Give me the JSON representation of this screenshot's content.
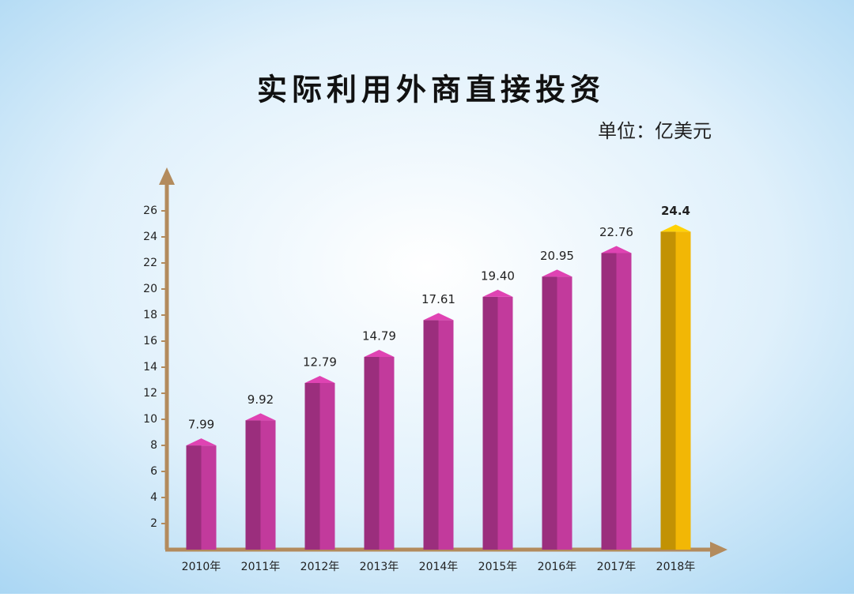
{
  "chart_data": {
    "type": "bar",
    "title": "实际利用外商直接投资",
    "subtitle": "单位：亿美元",
    "categories": [
      "2010年",
      "2011年",
      "2012年",
      "2013年",
      "2014年",
      "2015年",
      "2016年",
      "2017年",
      "2018年"
    ],
    "values": [
      7.99,
      9.92,
      12.79,
      14.79,
      17.61,
      19.4,
      20.95,
      22.76,
      24.4
    ],
    "value_labels": [
      "7.99",
      "9.92",
      "12.79",
      "14.79",
      "17.61",
      "19.40",
      "20.95",
      "22.76",
      "24.4"
    ],
    "colors": [
      "#c23a9c",
      "#c23a9c",
      "#c23a9c",
      "#c23a9c",
      "#c23a9c",
      "#c23a9c",
      "#c23a9c",
      "#c23a9c",
      "#f2b705"
    ],
    "ylim": [
      0,
      29
    ],
    "yticks": [
      2,
      4,
      6,
      8,
      10,
      12,
      14,
      16,
      18,
      20,
      22,
      24,
      26
    ]
  }
}
